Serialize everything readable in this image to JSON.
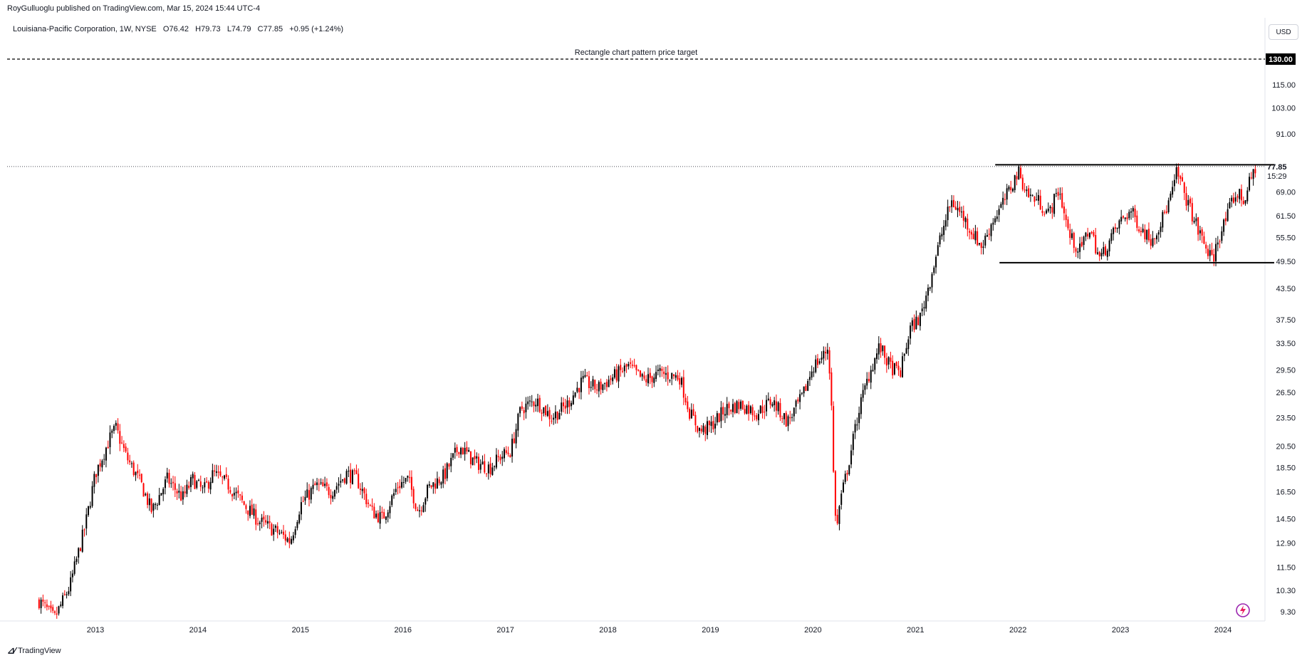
{
  "header": {
    "published": "RoyGulluoglu published on TradingView.com, Mar 15, 2024 15:44 UTC-4",
    "symbol_line": "Louisiana-Pacific Corporation, 1W, NYSE   O76.42   H79.73   L74.79   C77.85   +0.95 (+1.24%)",
    "currency": "USD"
  },
  "footer": {
    "brand": "TradingView",
    "logo": "tv-logo-icon"
  },
  "colors": {
    "up": "#000000",
    "down": "#ff0000",
    "price_target": "#000000"
  },
  "chart_data": {
    "type": "candlestick",
    "title": "Louisiana-Pacific Corporation, 1W, NYSE",
    "ohlc_last": {
      "open": 76.42,
      "high": 79.73,
      "low": 74.79,
      "close": 77.85,
      "change": "+0.95 (+1.24%)"
    },
    "yscale": "log",
    "ylim": [
      8.6,
      133
    ],
    "xlim": [
      2012.4,
      2024.65
    ],
    "y_ticks": [
      "130.00",
      "115.00",
      "103.00",
      "91.00",
      "77.85",
      "69.00",
      "61.50",
      "55.50",
      "49.50",
      "43.50",
      "37.50",
      "33.50",
      "29.50",
      "26.50",
      "23.50",
      "20.50",
      "18.50",
      "16.50",
      "14.50",
      "12.90",
      "11.50",
      "10.30",
      "9.30"
    ],
    "y_tick_values": [
      130,
      115,
      103,
      91,
      77.85,
      69,
      61.5,
      55.5,
      49.5,
      43.5,
      37.5,
      33.5,
      29.5,
      26.5,
      23.5,
      20.5,
      18.5,
      16.5,
      14.5,
      12.9,
      11.5,
      10.3,
      9.3
    ],
    "x_ticks": [
      "2013",
      "2014",
      "2015",
      "2016",
      "2017",
      "2018",
      "2019",
      "2020",
      "2021",
      "2022",
      "2023",
      "2024"
    ],
    "x_tick_values": [
      2013,
      2014,
      2015,
      2016,
      2017,
      2018,
      2019,
      2020,
      2021,
      2022,
      2023,
      2024
    ],
    "last_price_label": "77.85",
    "countdown": "15:29",
    "price_target": {
      "value": 130.0,
      "label": "130.00",
      "annotation": "Rectangle chart pattern price target"
    },
    "rectangle": {
      "top": 78.5,
      "bottom": 49.2,
      "start": 2021.82,
      "end": 2024.5
    },
    "key_points": [
      [
        2012.45,
        9.8
      ],
      [
        2012.6,
        9.0
      ],
      [
        2012.75,
        10.5
      ],
      [
        2012.9,
        14.0
      ],
      [
        2013.0,
        18.0
      ],
      [
        2013.15,
        21.5
      ],
      [
        2013.2,
        22.3
      ],
      [
        2013.3,
        19.5
      ],
      [
        2013.45,
        17.0
      ],
      [
        2013.55,
        15.0
      ],
      [
        2013.7,
        17.5
      ],
      [
        2013.85,
        16.0
      ],
      [
        2013.95,
        17.5
      ],
      [
        2014.05,
        16.5
      ],
      [
        2014.15,
        18.0
      ],
      [
        2014.3,
        17.0
      ],
      [
        2014.45,
        15.5
      ],
      [
        2014.6,
        14.3
      ],
      [
        2014.8,
        13.5
      ],
      [
        2014.9,
        13.0
      ],
      [
        2015.0,
        15.5
      ],
      [
        2015.15,
        17.0
      ],
      [
        2015.3,
        16.5
      ],
      [
        2015.45,
        18.0
      ],
      [
        2015.55,
        17.5
      ],
      [
        2015.7,
        15.0
      ],
      [
        2015.8,
        14.5
      ],
      [
        2015.95,
        17.0
      ],
      [
        2016.05,
        17.5
      ],
      [
        2016.15,
        15.0
      ],
      [
        2016.25,
        16.8
      ],
      [
        2016.4,
        17.8
      ],
      [
        2016.55,
        20.5
      ],
      [
        2016.7,
        19.0
      ],
      [
        2016.85,
        18.5
      ],
      [
        2016.95,
        19.5
      ],
      [
        2017.05,
        20.0
      ],
      [
        2017.15,
        24.5
      ],
      [
        2017.3,
        25.5
      ],
      [
        2017.45,
        23.5
      ],
      [
        2017.6,
        25.0
      ],
      [
        2017.75,
        28.0
      ],
      [
        2017.9,
        27.0
      ],
      [
        2018.05,
        28.5
      ],
      [
        2018.2,
        30.0
      ],
      [
        2018.35,
        28.0
      ],
      [
        2018.5,
        29.0
      ],
      [
        2018.7,
        28.5
      ],
      [
        2018.8,
        24.0
      ],
      [
        2018.9,
        22.0
      ],
      [
        2019.0,
        22.5
      ],
      [
        2019.15,
        24.5
      ],
      [
        2019.3,
        25.0
      ],
      [
        2019.45,
        24.0
      ],
      [
        2019.6,
        25.5
      ],
      [
        2019.75,
        23.0
      ],
      [
        2019.9,
        26.0
      ],
      [
        2020.0,
        30.0
      ],
      [
        2020.1,
        31.5
      ],
      [
        2020.15,
        33.0
      ],
      [
        2020.18,
        25.0
      ],
      [
        2020.2,
        18.0
      ],
      [
        2020.23,
        13.5
      ],
      [
        2020.26,
        15.5
      ],
      [
        2020.35,
        19.0
      ],
      [
        2020.45,
        24.5
      ],
      [
        2020.55,
        29.0
      ],
      [
        2020.65,
        33.0
      ],
      [
        2020.75,
        30.0
      ],
      [
        2020.85,
        29.0
      ],
      [
        2020.95,
        36.0
      ],
      [
        2021.05,
        38.0
      ],
      [
        2021.15,
        46.0
      ],
      [
        2021.25,
        56.0
      ],
      [
        2021.35,
        66.0
      ],
      [
        2021.45,
        62.0
      ],
      [
        2021.55,
        57.0
      ],
      [
        2021.65,
        53.0
      ],
      [
        2021.75,
        60.0
      ],
      [
        2021.85,
        65.0
      ],
      [
        2021.95,
        72.0
      ],
      [
        2022.0,
        76.0
      ],
      [
        2022.1,
        68.0
      ],
      [
        2022.2,
        66.0
      ],
      [
        2022.3,
        62.0
      ],
      [
        2022.4,
        70.0
      ],
      [
        2022.5,
        56.0
      ],
      [
        2022.6,
        52.0
      ],
      [
        2022.7,
        58.0
      ],
      [
        2022.8,
        50.0
      ],
      [
        2022.9,
        55.0
      ],
      [
        2023.0,
        60.0
      ],
      [
        2023.1,
        63.0
      ],
      [
        2023.2,
        58.0
      ],
      [
        2023.3,
        55.0
      ],
      [
        2023.4,
        60.0
      ],
      [
        2023.5,
        68.0
      ],
      [
        2023.55,
        76.0
      ],
      [
        2023.65,
        66.0
      ],
      [
        2023.75,
        58.0
      ],
      [
        2023.85,
        52.0
      ],
      [
        2023.9,
        49.5
      ],
      [
        2023.95,
        55.0
      ],
      [
        2024.05,
        62.0
      ],
      [
        2024.1,
        67.0
      ],
      [
        2024.15,
        68.5
      ],
      [
        2024.2,
        66.0
      ],
      [
        2024.28,
        74.0
      ],
      [
        2024.32,
        77.85
      ]
    ]
  }
}
